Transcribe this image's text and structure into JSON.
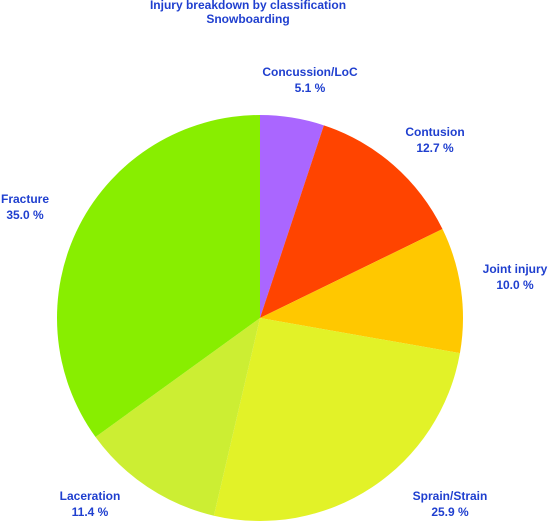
{
  "chart_data": {
    "type": "pie",
    "title": "Injury breakdown by classification",
    "subtitle": "Snowboarding",
    "categories": [
      "Concussion/LoC",
      "Contusion",
      "Joint injury",
      "Sprain/Strain",
      "Laceration",
      "Fracture"
    ],
    "values": [
      5.1,
      12.7,
      10.0,
      25.9,
      11.4,
      35.0
    ],
    "value_labels": [
      "5.1 %",
      "12.7 %",
      "10.0 %",
      "25.9 %",
      "11.4 %",
      "35.0 %"
    ],
    "colors": [
      "#aa66ff",
      "#ff4400",
      "#ffc800",
      "#e2f228",
      "#ccee33",
      "#88ee00"
    ]
  }
}
